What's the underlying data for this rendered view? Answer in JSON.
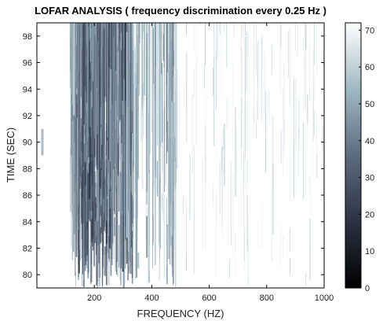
{
  "chart_data": {
    "type": "heatmap",
    "title": "LOFAR ANALYSIS ( frequency discrimination every 0.25 Hz )",
    "xlabel": "FREQUENCY (HZ)",
    "ylabel": "TIME (SEC)",
    "xlim": [
      0,
      1000
    ],
    "ylim": [
      79,
      99
    ],
    "x_ticks": [
      200,
      400,
      600,
      800,
      1000
    ],
    "y_ticks": [
      80,
      82,
      84,
      86,
      88,
      90,
      92,
      94,
      96,
      98
    ],
    "colorbar": {
      "range": [
        0,
        72
      ],
      "ticks": [
        0,
        10,
        20,
        30,
        40,
        50,
        60,
        70
      ],
      "colormap": "bone",
      "low_color": "#000000",
      "mid_color": "#7f9aa8",
      "high_color": "#ffffff"
    },
    "grid": false,
    "description_of_intensity": "Strong dark vertical striations concentrated between about 120 Hz and 330 Hz across the full time span, weaker striations up to about 480 Hz, faint traces near 650-780 Hz, background near maximum (white)."
  }
}
